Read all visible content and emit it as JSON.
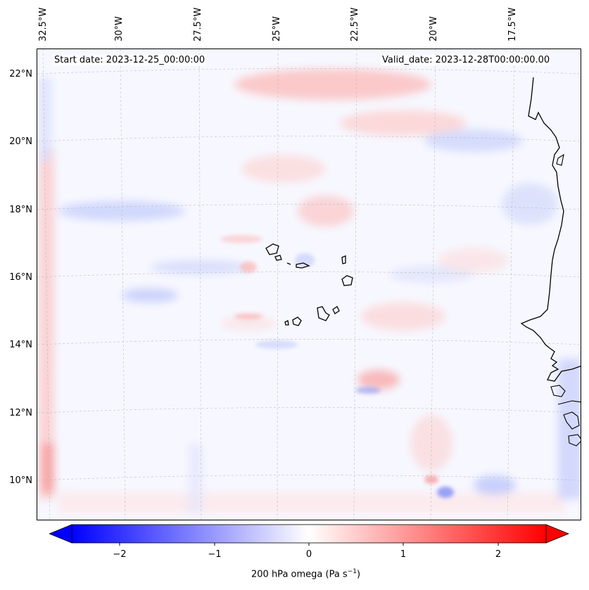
{
  "map": {
    "start_date": "Start date: 2023-12-25_00:00:00",
    "valid_date": "Valid_date: 2023-12-28T00:00:00.00",
    "lon_labels": [
      "32.5°W",
      "30°W",
      "27.5°W",
      "25°W",
      "22.5°W",
      "20°W",
      "17.5°W"
    ],
    "lat_labels": [
      "22°N",
      "20°N",
      "18°N",
      "16°N",
      "14°N",
      "12°N",
      "10°N"
    ],
    "extent": {
      "lon_min": -32.6,
      "lon_max": -16.3,
      "lat_min": 8.8,
      "lat_max": 22.8
    }
  },
  "colorbar": {
    "label": "200 hPa omega (Pa s",
    "label_sup": "−1",
    "label_close": ")",
    "ticks": [
      "−2",
      "−1",
      "0",
      "1",
      "2"
    ],
    "tick_values": [
      -2,
      -1,
      0,
      1,
      2
    ],
    "range": [
      -2.5,
      2.5
    ],
    "colormap": "bwr",
    "color_low": "#0000ff",
    "color_mid": "#ffffff",
    "color_high": "#ff0000"
  }
}
